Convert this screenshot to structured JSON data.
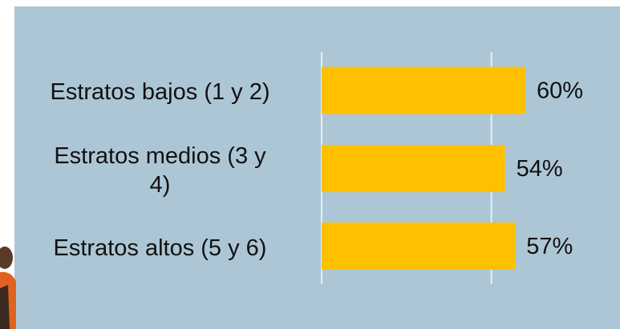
{
  "chart_data": {
    "type": "hbar",
    "categories": [
      "Estratos bajos (1 y 2)",
      "Estratos medios (3 y 4)",
      "Estratos altos (5 y 6)"
    ],
    "values": [
      60,
      54,
      57
    ],
    "value_labels": [
      "60%",
      "54%",
      "57%"
    ],
    "color": "#ffc000",
    "xlim": [
      0,
      88
    ],
    "xticks": [
      0,
      50
    ],
    "grid": true
  }
}
